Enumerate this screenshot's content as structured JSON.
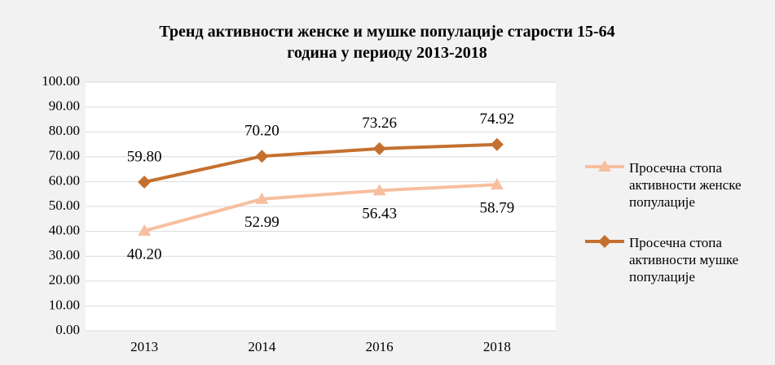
{
  "chart_data": {
    "type": "line",
    "title": "Тренд активности женске и мушке популације старости 15-64 година у периоду 2013-2018",
    "categories": [
      "2013",
      "2014",
      "2016",
      "2018"
    ],
    "series": [
      {
        "name": "Просечна стопа активности женске популације",
        "color": "#f7bf9f",
        "marker": "triangle",
        "values": [
          40.2,
          52.99,
          56.43,
          58.79
        ],
        "value_labels": [
          "40.20",
          "52.99",
          "56.43",
          "58.79"
        ],
        "label_position": "below"
      },
      {
        "name": "Просечна стопа активности мушке популације",
        "color": "#c5702f",
        "marker": "diamond",
        "values": [
          59.8,
          70.2,
          73.26,
          74.92
        ],
        "value_labels": [
          "59.80",
          "70.20",
          "73.26",
          "74.92"
        ],
        "label_position": "above"
      }
    ],
    "ylim": [
      0,
      100
    ],
    "yticks": [
      {
        "value": 0,
        "label": "0.00"
      },
      {
        "value": 10,
        "label": "10.00"
      },
      {
        "value": 20,
        "label": "20.00"
      },
      {
        "value": 30,
        "label": "30.00"
      },
      {
        "value": 40,
        "label": "40.00"
      },
      {
        "value": 50,
        "label": "50.00"
      },
      {
        "value": 60,
        "label": "60.00"
      },
      {
        "value": 70,
        "label": "70.00"
      },
      {
        "value": 80,
        "label": "80.00"
      },
      {
        "value": 90,
        "label": "90.00"
      },
      {
        "value": 100,
        "label": "100.00"
      }
    ],
    "grid": true,
    "legend": "right"
  }
}
